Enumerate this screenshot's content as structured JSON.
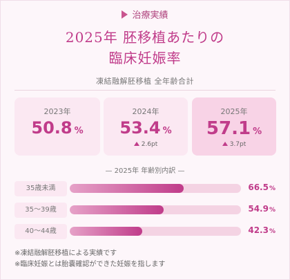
{
  "badge": "治療実績",
  "title": {
    "line1": "2025年 胚移植あたりの",
    "line2": "臨床妊娠率"
  },
  "subtitle": "凍結融解胚移植 全年齢合計",
  "stats": [
    {
      "year": "2023年",
      "value": "50.8",
      "unit": "%",
      "diff": ""
    },
    {
      "year": "2024年",
      "value": "53.4",
      "unit": "%",
      "diff": "2.6pt"
    },
    {
      "year": "2025年",
      "value": "57.1",
      "unit": "%",
      "diff": "3.7pt"
    }
  ],
  "section_title": "— 2025年 年齢別内訳 —",
  "age_rates": [
    {
      "label": "35歳未満",
      "value": "66.5",
      "unit": "%",
      "fraction": 0.665
    },
    {
      "label": "35〜39歳",
      "value": "54.9",
      "unit": "%",
      "fraction": 0.549
    },
    {
      "label": "40〜44歳",
      "value": "42.3",
      "unit": "%",
      "fraction": 0.423
    }
  ],
  "notes": [
    "※凍結融解胚移植による実績です",
    "※臨床妊娠とは胎嚢確認ができた妊娠を指します"
  ],
  "colors": {
    "accent": "#c03c8a",
    "card_bg": "#fbe8f2",
    "highlight_bg": "#f8d3e6",
    "track": "#f4d3e3"
  }
}
